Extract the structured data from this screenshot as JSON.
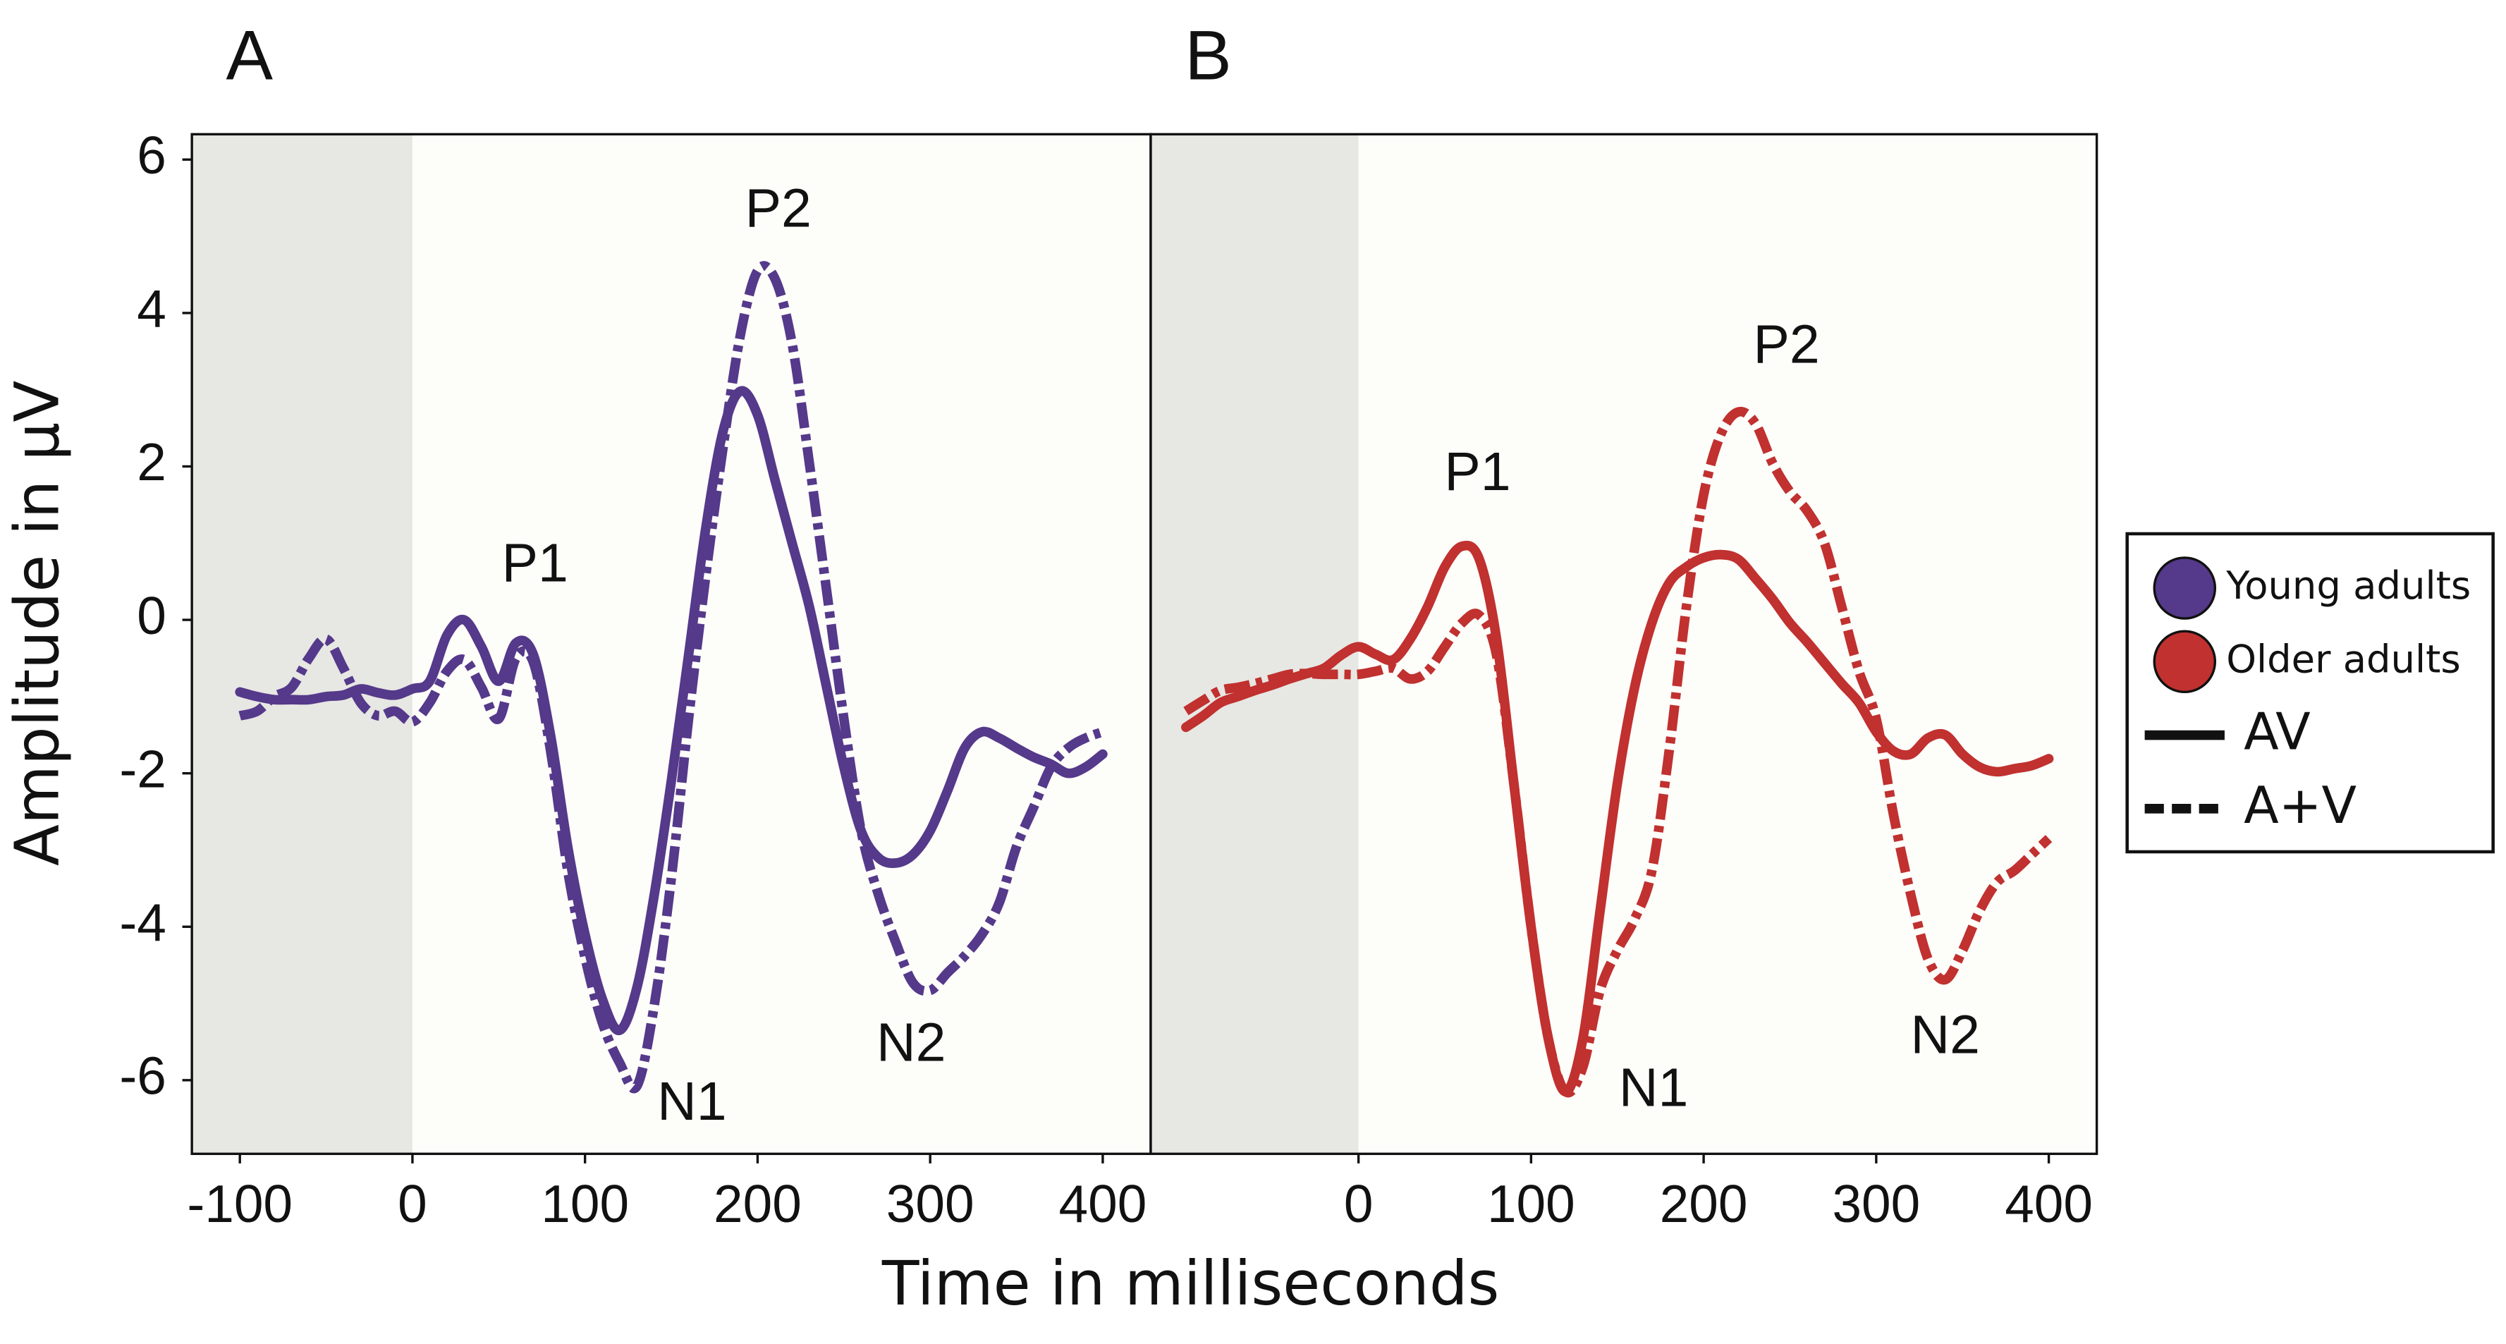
{
  "chart_data": [
    {
      "type": "line",
      "panel": "A",
      "ylabel": "Amplitude in µV",
      "xlabel": "Time in milliseconds",
      "xlim": [
        -127.8,
        427.8
      ],
      "ylim": [
        -6.96,
        6.33
      ],
      "xticks": [
        -100,
        0,
        100,
        200,
        300,
        400
      ],
      "yticks": [
        6,
        4,
        2,
        0,
        -2,
        -4,
        -6
      ],
      "shade_xlim": [
        -127.8,
        0
      ],
      "x": [
        -100,
        -90,
        -80,
        -70,
        -60,
        -50,
        -40,
        -30,
        -20,
        -10,
        0,
        10,
        20,
        30,
        40,
        50,
        60,
        70,
        80,
        90,
        100,
        110,
        120,
        130,
        140,
        150,
        160,
        170,
        180,
        190,
        200,
        210,
        220,
        230,
        240,
        250,
        260,
        270,
        280,
        290,
        300,
        310,
        320,
        330,
        340,
        350,
        360,
        370,
        380,
        390,
        400
      ],
      "series": [
        {
          "color": "#55398a",
          "dash": "solid",
          "values": [
            -0.94,
            -1.0,
            -1.04,
            -1.04,
            -1.04,
            -1.0,
            -0.98,
            -0.9,
            -0.95,
            -0.98,
            -0.9,
            -0.8,
            -0.2,
            0.0,
            -0.35,
            -0.8,
            -0.3,
            -0.45,
            -1.5,
            -2.96,
            -4.1,
            -4.94,
            -5.35,
            -4.8,
            -3.6,
            -2.1,
            -0.46,
            1.2,
            2.46,
            2.98,
            2.67,
            1.83,
            1.0,
            0.17,
            -0.88,
            -1.92,
            -2.75,
            -3.1,
            -3.17,
            -3.06,
            -2.75,
            -2.23,
            -1.67,
            -1.46,
            -1.54,
            -1.67,
            -1.79,
            -1.88,
            -2.0,
            -1.92,
            -1.75
          ]
        },
        {
          "color": "#55398a",
          "dash": "dashed",
          "values": [
            -1.25,
            -1.19,
            -1.0,
            -0.88,
            -0.5,
            -0.25,
            -0.63,
            -1.08,
            -1.25,
            -1.19,
            -1.33,
            -1.08,
            -0.67,
            -0.52,
            -0.88,
            -1.29,
            -0.5,
            -0.55,
            -1.7,
            -3.27,
            -4.4,
            -5.25,
            -5.77,
            -6.08,
            -5.04,
            -3.37,
            -1.29,
            0.58,
            2.25,
            3.71,
            4.55,
            4.45,
            3.6,
            2.04,
            0.38,
            -1.29,
            -2.75,
            -3.58,
            -4.2,
            -4.73,
            -4.83,
            -4.6,
            -4.38,
            -4.1,
            -3.69,
            -2.96,
            -2.44,
            -1.92,
            -1.67,
            -1.54,
            -1.46
          ]
        }
      ],
      "annotations": [
        {
          "text": "P1",
          "x": 71,
          "y": 0.69
        },
        {
          "text": "P2",
          "x": 212,
          "y": 5.31
        },
        {
          "text": "N1",
          "x": 162,
          "y": -6.33
        },
        {
          "text": "N2",
          "x": 289,
          "y": -5.56
        }
      ]
    },
    {
      "type": "line",
      "panel": "B",
      "xlim": [
        -120.4,
        427.8
      ],
      "ylim": [
        -6.96,
        6.33
      ],
      "xticks": [
        0,
        100,
        200,
        300,
        400
      ],
      "shade_xlim": [
        -120.4,
        0
      ],
      "x": [
        -100,
        -90,
        -80,
        -70,
        -60,
        -50,
        -40,
        -30,
        -20,
        -10,
        0,
        10,
        20,
        30,
        40,
        50,
        60,
        70,
        80,
        90,
        100,
        110,
        120,
        130,
        140,
        150,
        160,
        170,
        180,
        190,
        200,
        210,
        220,
        230,
        240,
        250,
        260,
        270,
        280,
        290,
        300,
        310,
        320,
        330,
        340,
        350,
        360,
        370,
        380,
        390,
        400
      ],
      "series": [
        {
          "color": "#c0312f",
          "dash": "solid",
          "values": [
            -1.4,
            -1.25,
            -1.08,
            -1.0,
            -0.92,
            -0.85,
            -0.77,
            -0.7,
            -0.63,
            -0.46,
            -0.35,
            -0.45,
            -0.52,
            -0.25,
            0.17,
            0.69,
            0.96,
            0.79,
            -0.25,
            -2.13,
            -4.0,
            -5.46,
            -6.15,
            -5.46,
            -3.79,
            -2.13,
            -0.88,
            -0.04,
            0.48,
            0.69,
            0.81,
            0.85,
            0.79,
            0.54,
            0.27,
            -0.04,
            -0.29,
            -0.56,
            -0.83,
            -1.08,
            -1.46,
            -1.71,
            -1.75,
            -1.54,
            -1.5,
            -1.75,
            -1.92,
            -1.98,
            -1.94,
            -1.9,
            -1.81
          ]
        },
        {
          "color": "#c0312f",
          "dash": "dashed",
          "values": [
            -1.19,
            -1.05,
            -0.92,
            -0.88,
            -0.83,
            -0.77,
            -0.71,
            -0.7,
            -0.71,
            -0.71,
            -0.71,
            -0.67,
            -0.63,
            -0.77,
            -0.67,
            -0.35,
            -0.04,
            0.06,
            -0.46,
            -2.13,
            -4.0,
            -5.46,
            -6.15,
            -5.83,
            -4.83,
            -4.31,
            -3.9,
            -3.27,
            -1.71,
            0.17,
            1.63,
            2.42,
            2.71,
            2.56,
            2.04,
            1.67,
            1.42,
            1.0,
            0.17,
            -0.67,
            -1.29,
            -2.54,
            -3.58,
            -4.42,
            -4.69,
            -4.31,
            -3.79,
            -3.42,
            -3.27,
            -3.06,
            -2.85
          ]
        }
      ],
      "annotations": [
        {
          "text": "P1",
          "x": 69,
          "y": 1.88
        },
        {
          "text": "P2",
          "x": 248,
          "y": 3.54
        },
        {
          "text": "N1",
          "x": 171,
          "y": -6.15
        },
        {
          "text": "N2",
          "x": 340,
          "y": -5.46
        }
      ]
    }
  ],
  "legend": {
    "entries": [
      {
        "label": "Young adults",
        "color": "#55398a",
        "marker": "circle"
      },
      {
        "label": "Older adults",
        "color": "#c0312f",
        "marker": "circle"
      },
      {
        "label": "AV",
        "color": "#111111",
        "marker": "solid"
      },
      {
        "label": "A+V",
        "color": "#111111",
        "marker": "dashed"
      }
    ]
  }
}
